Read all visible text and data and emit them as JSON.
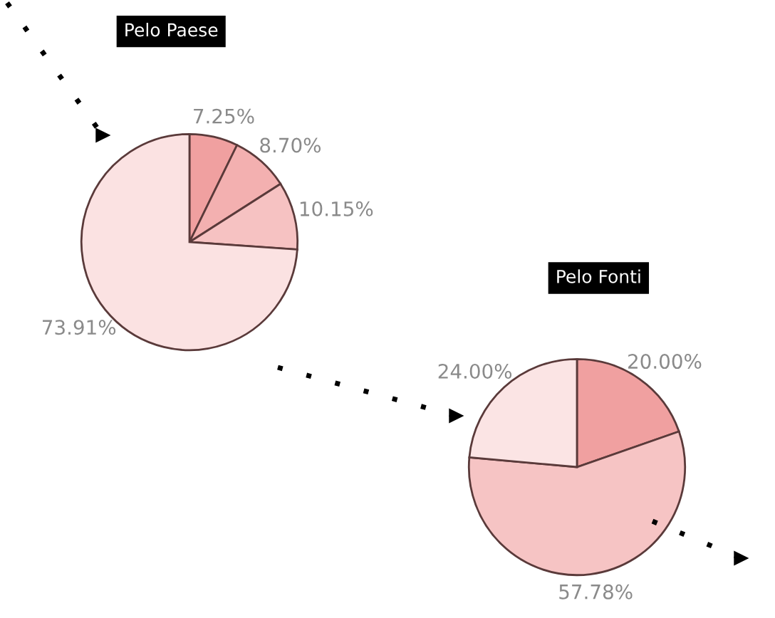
{
  "chart_data": [
    {
      "type": "pie",
      "title": "Pelo Paese",
      "categories": [
        null,
        null,
        null,
        null
      ],
      "values": [
        7.25,
        8.7,
        10.15,
        73.91
      ],
      "value_labels": [
        "7.25%",
        "8.70%",
        "10.15%",
        "73.91%"
      ],
      "colors": [
        "#f0a0a0",
        "#f3b0b0",
        "#f6c2c2",
        "#fbe2e2"
      ]
    },
    {
      "type": "pie",
      "title": "Pelo Fonti",
      "categories": [
        null,
        null,
        null
      ],
      "values": [
        20.0,
        57.78,
        24.0
      ],
      "value_labels": [
        "20.00%",
        "57.78%",
        "24.00%"
      ],
      "colors": [
        "#f0a0a0",
        "#f6c4c4",
        "#fbe4e4"
      ]
    }
  ]
}
